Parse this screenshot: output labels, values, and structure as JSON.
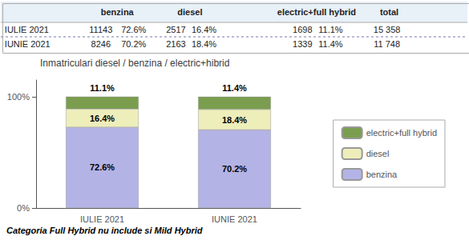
{
  "chart_data": {
    "type": "bar",
    "title": "Inmatriculari diesel / benzina / electric+hibrid",
    "categories": [
      "IULIE 2021",
      "IUNIE 2021"
    ],
    "stacked": true,
    "data_labels": true,
    "grid": false,
    "legend": "right",
    "series": [
      {
        "name": "benzina",
        "color": "#b3b3e6",
        "values": [
          72.6,
          70.2
        ],
        "value_labels": [
          "72.6%",
          "70.2%"
        ]
      },
      {
        "name": "diesel",
        "color": "#eeeebb",
        "values": [
          16.4,
          18.4
        ],
        "value_labels": [
          "16.4%",
          "18.4%"
        ]
      },
      {
        "name": "electric+full hybrid",
        "color": "#7a9e4e",
        "values": [
          11.1,
          11.4
        ],
        "value_labels": [
          "11.1%",
          "11.4%"
        ]
      }
    ],
    "ylim": [
      0,
      115
    ],
    "yticks": [
      {
        "value": 0,
        "label": "0%"
      },
      {
        "value": 100,
        "label": "100%"
      }
    ],
    "table": {
      "header": [
        "benzina",
        "diesel",
        "electric+full hybrid",
        "total"
      ],
      "rows": [
        [
          "IULIE 2021",
          "11143",
          "72.6%",
          "2517",
          "16.4%",
          "1698",
          "11.1%",
          "15 358"
        ],
        [
          "IUNIE 2021",
          "8246",
          "70.2%",
          "2163",
          "18.4%",
          "1339",
          "11.4%",
          "11 748"
        ]
      ]
    },
    "annotations": [
      "Categoria Full Hybrid nu include si Mild Hybrid"
    ]
  }
}
